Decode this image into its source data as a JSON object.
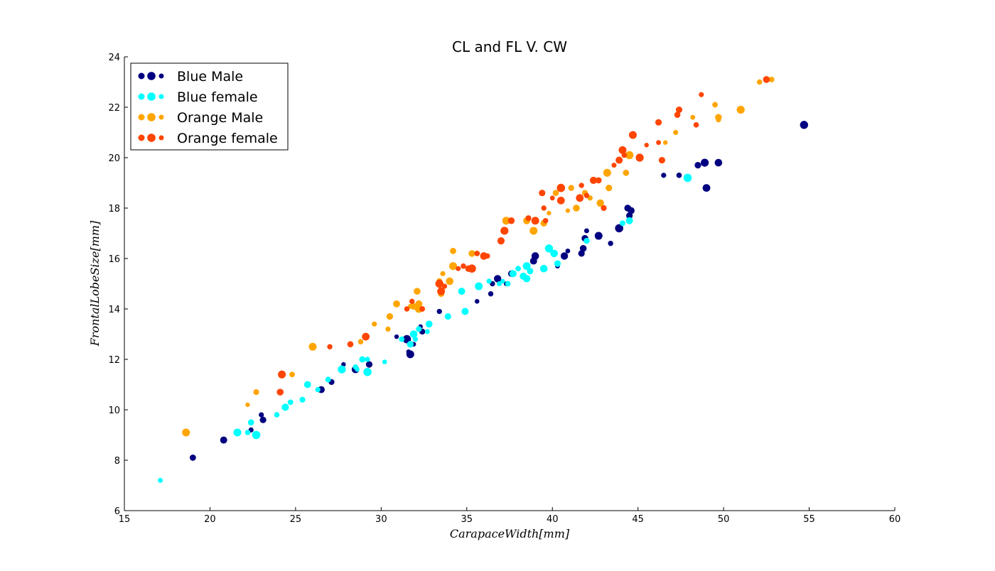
{
  "chart_data": {
    "type": "scatter",
    "title": "CL and FL V. CW",
    "xlabel": "CarapaceWidth[mm]",
    "ylabel": "FrontalLobeSize[mm]",
    "xlim": [
      15,
      60
    ],
    "ylim": [
      6,
      24
    ],
    "xticks": [
      "15",
      "20",
      "25",
      "30",
      "35",
      "40",
      "45",
      "50",
      "55",
      "60"
    ],
    "yticks": [
      "6",
      "8",
      "10",
      "12",
      "14",
      "16",
      "18",
      "20",
      "22",
      "24"
    ],
    "grid": false,
    "legend_position": "top-left",
    "series": [
      {
        "name": "Blue Male",
        "color": "#000080",
        "points": [
          [
            19.0,
            8.1
          ],
          [
            20.8,
            8.8
          ],
          [
            22.4,
            9.2
          ],
          [
            23.0,
            9.8
          ],
          [
            23.1,
            9.6
          ],
          [
            26.5,
            10.8
          ],
          [
            27.1,
            11.1
          ],
          [
            27.8,
            11.8
          ],
          [
            28.5,
            11.6
          ],
          [
            29.3,
            11.8
          ],
          [
            30.9,
            12.9
          ],
          [
            31.5,
            12.8
          ],
          [
            31.6,
            12.3
          ],
          [
            31.7,
            12.2
          ],
          [
            31.9,
            12.6
          ],
          [
            32.3,
            13.3
          ],
          [
            32.4,
            13.1
          ],
          [
            33.4,
            13.9
          ],
          [
            35.6,
            14.3
          ],
          [
            36.4,
            14.6
          ],
          [
            36.5,
            15.0
          ],
          [
            36.8,
            15.2
          ],
          [
            37.3,
            15.0
          ],
          [
            37.6,
            15.4
          ],
          [
            38.9,
            15.9
          ],
          [
            39.0,
            16.1
          ],
          [
            40.3,
            15.7
          ],
          [
            40.7,
            16.1
          ],
          [
            40.9,
            16.3
          ],
          [
            41.7,
            16.2
          ],
          [
            41.8,
            16.4
          ],
          [
            41.9,
            16.8
          ],
          [
            42.0,
            17.1
          ],
          [
            42.7,
            16.9
          ],
          [
            43.4,
            16.6
          ],
          [
            43.9,
            17.2
          ],
          [
            44.4,
            18.0
          ],
          [
            44.5,
            17.7
          ],
          [
            44.6,
            17.9
          ],
          [
            46.5,
            19.3
          ],
          [
            47.4,
            19.3
          ],
          [
            48.5,
            19.7
          ],
          [
            48.9,
            19.8
          ],
          [
            49.0,
            18.8
          ],
          [
            49.7,
            19.8
          ],
          [
            54.7,
            21.3
          ]
        ]
      },
      {
        "name": "Blue female",
        "color": "#00ffff",
        "points": [
          [
            17.1,
            7.2
          ],
          [
            21.6,
            9.1
          ],
          [
            22.2,
            9.1
          ],
          [
            22.4,
            9.5
          ],
          [
            22.7,
            9.0
          ],
          [
            23.9,
            9.8
          ],
          [
            24.4,
            10.1
          ],
          [
            24.7,
            10.3
          ],
          [
            25.4,
            10.4
          ],
          [
            25.7,
            11.0
          ],
          [
            26.3,
            10.8
          ],
          [
            26.9,
            11.2
          ],
          [
            27.7,
            11.6
          ],
          [
            28.5,
            11.7
          ],
          [
            28.6,
            11.6
          ],
          [
            28.9,
            12.0
          ],
          [
            29.2,
            12.0
          ],
          [
            29.2,
            11.5
          ],
          [
            30.2,
            11.9
          ],
          [
            31.2,
            12.8
          ],
          [
            31.7,
            12.6
          ],
          [
            31.9,
            13.0
          ],
          [
            32.0,
            12.8
          ],
          [
            32.2,
            13.2
          ],
          [
            32.7,
            13.1
          ],
          [
            32.8,
            13.4
          ],
          [
            33.9,
            13.7
          ],
          [
            34.7,
            14.7
          ],
          [
            34.9,
            13.9
          ],
          [
            35.7,
            14.9
          ],
          [
            36.3,
            15.1
          ],
          [
            36.9,
            15.0
          ],
          [
            37.1,
            15.1
          ],
          [
            37.4,
            15.0
          ],
          [
            37.7,
            15.4
          ],
          [
            38.0,
            15.6
          ],
          [
            38.3,
            15.3
          ],
          [
            38.5,
            15.2
          ],
          [
            38.5,
            15.7
          ],
          [
            38.7,
            15.5
          ],
          [
            39.5,
            15.6
          ],
          [
            39.8,
            16.4
          ],
          [
            40.1,
            16.2
          ],
          [
            40.3,
            15.8
          ],
          [
            42.0,
            16.7
          ],
          [
            44.1,
            17.4
          ],
          [
            44.5,
            17.5
          ],
          [
            47.9,
            19.2
          ]
        ]
      },
      {
        "name": "Orange Male",
        "color": "#ffa500",
        "points": [
          [
            18.6,
            9.1
          ],
          [
            22.2,
            10.2
          ],
          [
            22.7,
            10.7
          ],
          [
            24.8,
            11.4
          ],
          [
            26.0,
            12.5
          ],
          [
            28.8,
            12.7
          ],
          [
            29.6,
            13.4
          ],
          [
            30.4,
            13.2
          ],
          [
            30.5,
            13.7
          ],
          [
            30.9,
            14.2
          ],
          [
            31.7,
            14.1
          ],
          [
            31.9,
            14.1
          ],
          [
            32.1,
            14.7
          ],
          [
            32.2,
            14.2
          ],
          [
            32.2,
            14.0
          ],
          [
            33.4,
            15.1
          ],
          [
            33.5,
            14.6
          ],
          [
            33.6,
            15.4
          ],
          [
            34.0,
            15.1
          ],
          [
            34.2,
            15.7
          ],
          [
            34.2,
            16.3
          ],
          [
            35.3,
            16.2
          ],
          [
            37.3,
            17.5
          ],
          [
            38.5,
            17.5
          ],
          [
            38.9,
            17.1
          ],
          [
            39.5,
            17.4
          ],
          [
            39.8,
            17.8
          ],
          [
            40.2,
            18.6
          ],
          [
            40.9,
            17.9
          ],
          [
            41.1,
            18.8
          ],
          [
            41.4,
            18.0
          ],
          [
            41.9,
            18.6
          ],
          [
            42.2,
            18.4
          ],
          [
            42.8,
            18.2
          ],
          [
            43.2,
            19.4
          ],
          [
            43.3,
            18.8
          ],
          [
            44.3,
            19.4
          ],
          [
            44.5,
            20.1
          ],
          [
            46.6,
            20.6
          ],
          [
            47.2,
            21.0
          ],
          [
            48.2,
            21.6
          ],
          [
            49.5,
            22.1
          ],
          [
            49.7,
            21.5
          ],
          [
            49.7,
            21.6
          ],
          [
            51.0,
            21.9
          ],
          [
            52.1,
            23.0
          ],
          [
            52.8,
            23.1
          ]
        ]
      },
      {
        "name": "Orange female",
        "color": "#ff4500",
        "points": [
          [
            24.1,
            10.7
          ],
          [
            24.2,
            11.4
          ],
          [
            27.0,
            12.5
          ],
          [
            28.2,
            12.6
          ],
          [
            29.1,
            12.9
          ],
          [
            31.5,
            14.0
          ],
          [
            31.8,
            14.3
          ],
          [
            32.4,
            14.0
          ],
          [
            33.4,
            15.0
          ],
          [
            33.5,
            14.7
          ],
          [
            33.7,
            14.9
          ],
          [
            34.5,
            15.6
          ],
          [
            34.8,
            15.7
          ],
          [
            35.1,
            15.6
          ],
          [
            35.3,
            15.6
          ],
          [
            35.6,
            16.2
          ],
          [
            36.0,
            16.1
          ],
          [
            36.2,
            16.1
          ],
          [
            37.0,
            16.7
          ],
          [
            37.2,
            17.1
          ],
          [
            37.6,
            17.5
          ],
          [
            38.6,
            17.6
          ],
          [
            39.0,
            17.5
          ],
          [
            39.4,
            18.6
          ],
          [
            39.5,
            18.0
          ],
          [
            39.6,
            17.5
          ],
          [
            40.0,
            18.4
          ],
          [
            40.5,
            18.3
          ],
          [
            40.5,
            18.8
          ],
          [
            41.6,
            18.4
          ],
          [
            41.7,
            18.9
          ],
          [
            42.0,
            18.5
          ],
          [
            42.4,
            19.1
          ],
          [
            42.7,
            19.1
          ],
          [
            43.0,
            18.0
          ],
          [
            43.6,
            19.7
          ],
          [
            43.9,
            19.9
          ],
          [
            44.1,
            20.3
          ],
          [
            44.2,
            20.1
          ],
          [
            44.7,
            20.9
          ],
          [
            45.1,
            20.0
          ],
          [
            45.5,
            20.5
          ],
          [
            46.2,
            21.4
          ],
          [
            46.2,
            20.6
          ],
          [
            46.4,
            19.9
          ],
          [
            47.3,
            21.7
          ],
          [
            47.4,
            21.9
          ],
          [
            48.4,
            21.3
          ],
          [
            48.7,
            22.5
          ],
          [
            52.5,
            23.1
          ]
        ]
      }
    ]
  }
}
